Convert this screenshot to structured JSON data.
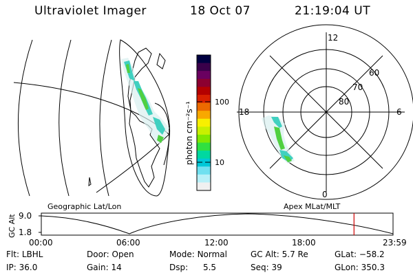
{
  "header": {
    "instrument": "Ultraviolet Imager",
    "date": "18 Oct 07",
    "time": "21:19:04 UT"
  },
  "colorbar": {
    "unit_label": "photon cm⁻²s⁻¹",
    "tick_labels": [
      "100",
      "10"
    ],
    "colors": [
      "#000040",
      "#3a004a",
      "#6a0060",
      "#8c0030",
      "#b40000",
      "#d82000",
      "#ec6a00",
      "#f8a800",
      "#f8f000",
      "#c8f000",
      "#80e800",
      "#30e040",
      "#00d8a0",
      "#00c8d8",
      "#70e0f0",
      "#b8f0f8",
      "#f0f0f0"
    ]
  },
  "polar_plot": {
    "mlt_labels": [
      "12",
      "18",
      "6",
      "0"
    ],
    "lat_labels": [
      "60",
      "70",
      "80"
    ]
  },
  "map_labels": {
    "geographic": "Geographic Lat/Lon",
    "apex": "Apex MLat/MLT"
  },
  "altitude_panel": {
    "axis_label": "GC Alt",
    "y_labels": [
      "9.0",
      "1.8"
    ],
    "x_labels": [
      "00:00",
      "06:00",
      "12:00",
      "18:00",
      "23:59"
    ],
    "current_marker_hours": 21.32
  },
  "status": {
    "filter_label": "Flt:",
    "filter": "LBHL",
    "ip_label": "IP:",
    "ip": "36.0",
    "door_label": "Door:",
    "door": "Open",
    "gain_label": "Gain:",
    "gain": "14",
    "mode_label": "Mode:",
    "mode": "Normal",
    "dsp_label": "Dsp:",
    "dsp": "5.5",
    "gcalt_label": "GC Alt:",
    "gcalt": "5.7 Re",
    "seq_label": "Seq:",
    "seq": "39",
    "glat_label": "GLat:",
    "glat": "−58.2",
    "glon_label": "GLon:",
    "glon": "350.3"
  }
}
